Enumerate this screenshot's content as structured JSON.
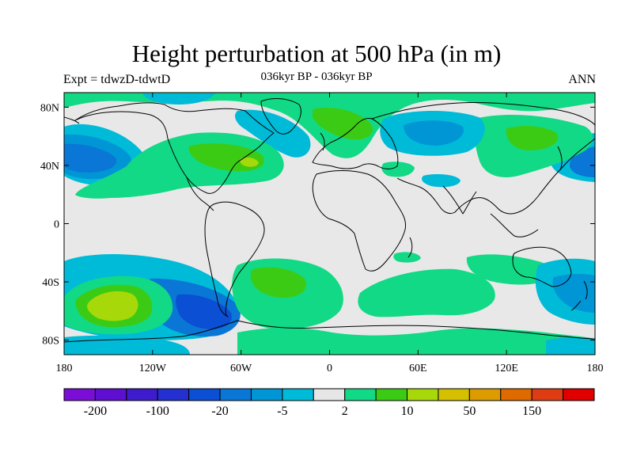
{
  "header": {
    "title": "Height perturbation at 500 hPa (in m)",
    "subtitle": "036kyr BP - 036kyr BP",
    "left_label": "Expt = tdwzD-tdwtD",
    "right_label": "ANN"
  },
  "map": {
    "projection": "equirectangular",
    "lon_range": [
      -180,
      180
    ],
    "lat_range": [
      -90,
      90
    ],
    "lat_ticks": [
      {
        "value": 80,
        "label": "80N"
      },
      {
        "value": 40,
        "label": "40N"
      },
      {
        "value": 0,
        "label": "0"
      },
      {
        "value": -40,
        "label": "40S"
      },
      {
        "value": -80,
        "label": "80S"
      }
    ],
    "lon_ticks": [
      {
        "value": -180,
        "label": "180"
      },
      {
        "value": -120,
        "label": "120W"
      },
      {
        "value": -60,
        "label": "60W"
      },
      {
        "value": 0,
        "label": "0"
      },
      {
        "value": 60,
        "label": "60E"
      },
      {
        "value": 120,
        "label": "120E"
      },
      {
        "value": 180,
        "label": "180"
      }
    ],
    "background_color": "#e8e8e8",
    "coastline_color": "#000000"
  },
  "colorbar": {
    "colors": [
      "#7b0ed6",
      "#5e0fcf",
      "#3f1ccb",
      "#2430cf",
      "#0a4fd4",
      "#0a76d6",
      "#0096d6",
      "#00bbd8",
      "#e6e6e6",
      "#12d985",
      "#3ccb14",
      "#a7d80a",
      "#d4c000",
      "#dc9b00",
      "#de6a00",
      "#de3c12",
      "#e00000"
    ],
    "labels": [
      {
        "boundary": 1,
        "text": "-200"
      },
      {
        "boundary": 3,
        "text": "-100"
      },
      {
        "boundary": 5,
        "text": "-20"
      },
      {
        "boundary": 7,
        "text": "-5"
      },
      {
        "boundary": 9,
        "text": "2"
      },
      {
        "boundary": 11,
        "text": "10"
      },
      {
        "boundary": 13,
        "text": "50"
      },
      {
        "boundary": 15,
        "text": "150"
      }
    ]
  }
}
